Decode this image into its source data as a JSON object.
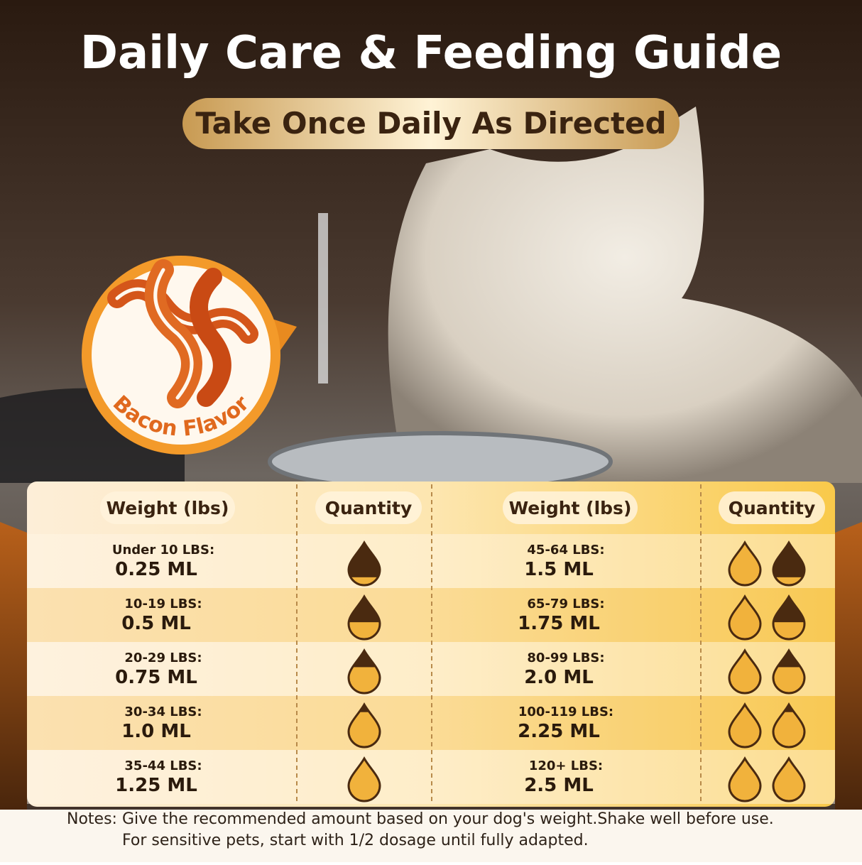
{
  "title": "Daily Care & Feeding Guide",
  "subtitle": "Take Once Daily As Directed",
  "badge": "Bacon Flavor",
  "table": {
    "headers": [
      "Weight (lbs)",
      "Quantity",
      "Weight (lbs)",
      "Quantity"
    ],
    "left": [
      {
        "weight": "Under 10 LBS:",
        "dose": "0.25 ML"
      },
      {
        "weight": "10-19 LBS:",
        "dose": "0.5 ML"
      },
      {
        "weight": "20-29 LBS:",
        "dose": "0.75 ML"
      },
      {
        "weight": "30-34 LBS:",
        "dose": "1.0 ML"
      },
      {
        "weight": "35-44 LBS:",
        "dose": "1.25 ML"
      }
    ],
    "right": [
      {
        "weight": "45-64 LBS:",
        "dose": "1.5 ML"
      },
      {
        "weight": "65-79 LBS:",
        "dose": "1.75 ML"
      },
      {
        "weight": "80-99 LBS:",
        "dose": "2.0 ML"
      },
      {
        "weight": "100-119 LBS:",
        "dose": "2.25 ML"
      },
      {
        "weight": "120+ LBS:",
        "dose": "2.5 ML"
      }
    ]
  },
  "notes": [
    "Notes: Give the recommended amount based on your dog's weight.Shake well before use.",
    "For sensitive pets, start with 1/2 dosage until fully adapted."
  ]
}
